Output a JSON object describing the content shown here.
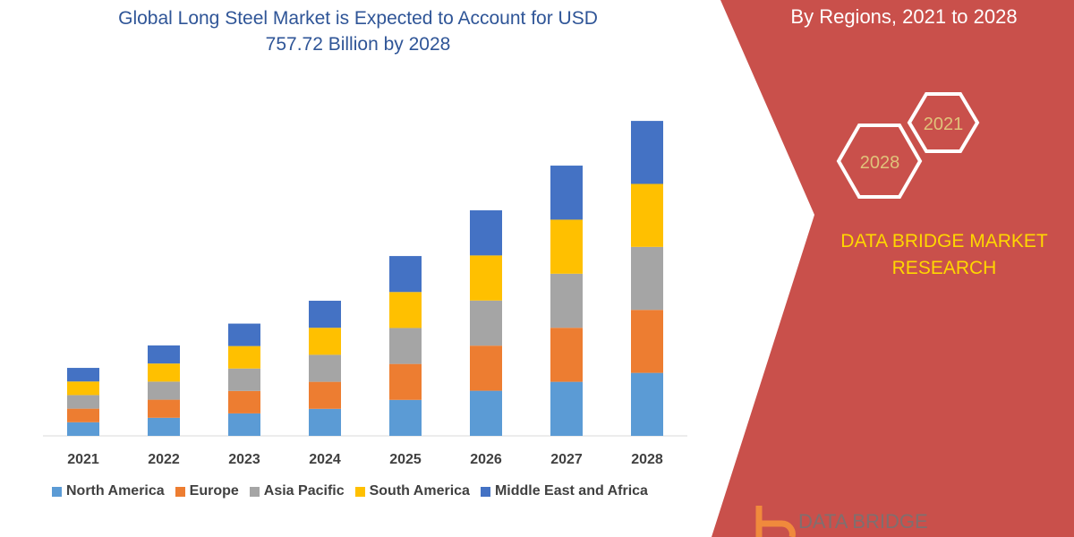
{
  "title": "Global Long Steel Market is Expected to Account for USD 757.72 Billion by 2028",
  "side_title": "By Regions, 2021 to 2028",
  "hexagons": [
    "2021",
    "2028"
  ],
  "brand": "DATA BRIDGE MARKET RESEARCH",
  "logo_text": "DATA BRIDGE",
  "colors": {
    "panel": "#c9504b",
    "brand_text": "#ffd700",
    "hex_text": "#e0c27a"
  },
  "chart_data": {
    "type": "bar",
    "stacked": true,
    "categories": [
      "2021",
      "2022",
      "2023",
      "2024",
      "2025",
      "2026",
      "2027",
      "2028"
    ],
    "ylabel": "",
    "xlabel": "",
    "grid": false,
    "legend": "bottom",
    "series": [
      {
        "name": "North America",
        "color": "#5b9bd5",
        "values": [
          32.7,
          43.5,
          54,
          65,
          86.5,
          108.5,
          130,
          151.5
        ]
      },
      {
        "name": "Europe",
        "color": "#ed7d31",
        "values": [
          32.7,
          43.5,
          54,
          65,
          86.5,
          108.5,
          130,
          151.5
        ]
      },
      {
        "name": "Asia Pacific",
        "color": "#a5a5a5",
        "values": [
          32.7,
          43.5,
          54,
          65,
          86.5,
          108.5,
          130,
          151.5
        ]
      },
      {
        "name": "South America",
        "color": "#ffc000",
        "values": [
          32.7,
          43.5,
          54,
          65,
          86.5,
          108.5,
          130,
          151.5
        ]
      },
      {
        "name": "Middle East and Africa",
        "color": "#4472c4",
        "values": [
          32.7,
          43.5,
          54,
          65,
          86.5,
          108.5,
          130,
          151.5
        ]
      }
    ]
  }
}
